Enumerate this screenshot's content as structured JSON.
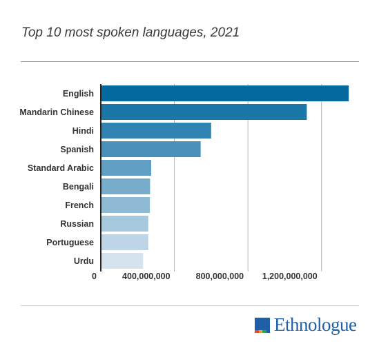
{
  "chart_data": {
    "type": "bar",
    "orientation": "horizontal",
    "title": "Top 10 most spoken languages, 2021",
    "categories": [
      "English",
      "Mandarin Chinese",
      "Hindi",
      "Spanish",
      "Standard Arabic",
      "Bengali",
      "French",
      "Russian",
      "Portuguese",
      "Urdu"
    ],
    "values": [
      1348000000,
      1120000000,
      600000000,
      543000000,
      274000000,
      268000000,
      267000000,
      258000000,
      258000000,
      230000000
    ],
    "xlim": [
      0,
      1400000000
    ],
    "xticks": [
      0,
      400000000,
      800000000,
      1200000000
    ],
    "xtick_labels": [
      "0",
      "400,000,000",
      "800,000,000",
      "1,200,000,000"
    ],
    "xlabel": "",
    "ylabel": "",
    "grid": true,
    "legend": "none",
    "colors": [
      "#03699f",
      "#1a77a8",
      "#3184b1",
      "#4991ba",
      "#609fc3",
      "#78accb",
      "#8fbad4",
      "#a6c8dd",
      "#bed5e6",
      "#d5e3ef"
    ]
  },
  "branding": {
    "logo_text": "Ethnologue",
    "logo_color": "#1f5fa8",
    "logo_strip_colors": [
      "#e8412c",
      "#f7a823",
      "#2ea44f",
      "#1f5fa8"
    ]
  }
}
